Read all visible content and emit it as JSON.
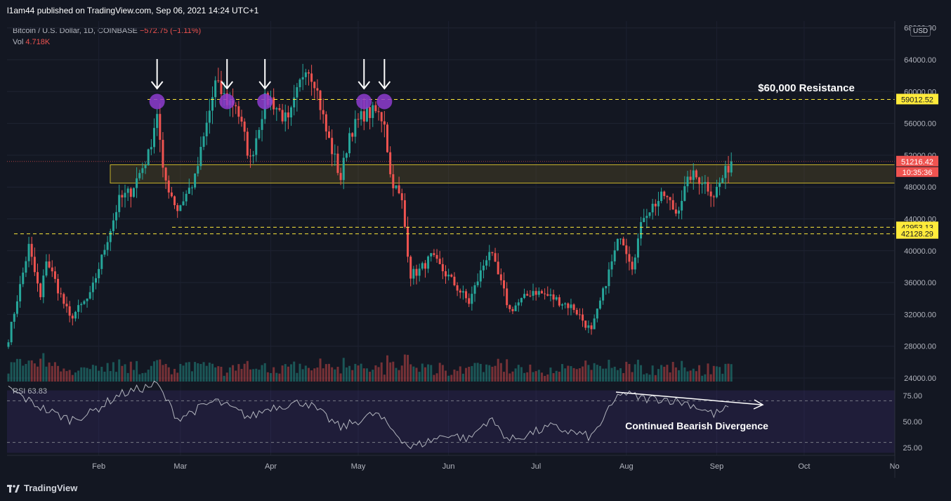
{
  "publisher_line": "l1am44 published on TradingView.com, Sep 06, 2021 14:24 UTC+1",
  "footer_brand": "TradingView",
  "legend": {
    "symbol": "Bitcoin / U.S. Dollar, 1D, COINBASE",
    "change": "−572.75 (−1.11%)",
    "vol_label": "Vol",
    "vol_value": "4.718K"
  },
  "currency_badge": "USD",
  "chart_data": {
    "type": "candlestick",
    "colors": {
      "up": "#26a69a",
      "down": "#ef5350",
      "background": "#131722",
      "level": "#ffeb3b",
      "marker": "#8e3ccf",
      "rsi": "#b2b5be"
    },
    "y_axis": {
      "min": 24000,
      "max": 68000,
      "ticks": [
        24000,
        28000,
        32000,
        36000,
        40000,
        44000,
        48000,
        52000,
        56000,
        60000,
        64000,
        68000
      ]
    },
    "x_axis_labels": [
      "Feb",
      "Mar",
      "Apr",
      "May",
      "Jun",
      "Jul",
      "Aug",
      "Sep",
      "Oct",
      "No"
    ],
    "price_labels": [
      {
        "text": "59012.52",
        "value": 59012.52,
        "style": "yellow"
      },
      {
        "text": "51216.42",
        "value": 51216.42,
        "style": "red"
      },
      {
        "text": "42953.13",
        "value": 42953.13,
        "style": "yellow"
      },
      {
        "text": "42128.29",
        "value": 42128.29,
        "style": "yellow"
      }
    ],
    "countdown": "10:35:36",
    "horizontal_levels": [
      59012.52,
      42953.13,
      42128.29
    ],
    "zone": {
      "low": 48500,
      "high": 50800
    },
    "price_path": [
      {
        "d": "2021-01-01",
        "p": 29000
      },
      {
        "d": "2021-01-08",
        "p": 40500
      },
      {
        "d": "2021-01-12",
        "p": 34000
      },
      {
        "d": "2021-01-14",
        "p": 39000
      },
      {
        "d": "2021-01-22",
        "p": 31500
      },
      {
        "d": "2021-01-29",
        "p": 34300
      },
      {
        "d": "2021-02-08",
        "p": 46300
      },
      {
        "d": "2021-02-12",
        "p": 47500
      },
      {
        "d": "2021-02-18",
        "p": 52000
      },
      {
        "d": "2021-02-21",
        "p": 57500
      },
      {
        "d": "2021-02-23",
        "p": 49700
      },
      {
        "d": "2021-02-28",
        "p": 45200
      },
      {
        "d": "2021-03-06",
        "p": 49000
      },
      {
        "d": "2021-03-13",
        "p": 61000
      },
      {
        "d": "2021-03-17",
        "p": 58800
      },
      {
        "d": "2021-03-20",
        "p": 58500
      },
      {
        "d": "2021-03-25",
        "p": 51300
      },
      {
        "d": "2021-03-30",
        "p": 58800
      },
      {
        "d": "2021-04-01",
        "p": 59000
      },
      {
        "d": "2021-04-07",
        "p": 56000
      },
      {
        "d": "2021-04-13",
        "p": 63500
      },
      {
        "d": "2021-04-16",
        "p": 61500
      },
      {
        "d": "2021-04-20",
        "p": 55000
      },
      {
        "d": "2021-04-25",
        "p": 49100
      },
      {
        "d": "2021-04-28",
        "p": 54800
      },
      {
        "d": "2021-05-03",
        "p": 57200
      },
      {
        "d": "2021-05-07",
        "p": 57400
      },
      {
        "d": "2021-05-10",
        "p": 56400
      },
      {
        "d": "2021-05-12",
        "p": 49500
      },
      {
        "d": "2021-05-16",
        "p": 46000
      },
      {
        "d": "2021-05-19",
        "p": 37000
      },
      {
        "d": "2021-05-22",
        "p": 37500
      },
      {
        "d": "2021-05-26",
        "p": 39200
      },
      {
        "d": "2021-06-01",
        "p": 36700
      },
      {
        "d": "2021-06-08",
        "p": 33500
      },
      {
        "d": "2021-06-15",
        "p": 40100
      },
      {
        "d": "2021-06-22",
        "p": 32500
      },
      {
        "d": "2021-06-30",
        "p": 35000
      },
      {
        "d": "2021-07-06",
        "p": 34200
      },
      {
        "d": "2021-07-14",
        "p": 32800
      },
      {
        "d": "2021-07-20",
        "p": 29800
      },
      {
        "d": "2021-07-26",
        "p": 37300
      },
      {
        "d": "2021-07-30",
        "p": 42200
      },
      {
        "d": "2021-08-03",
        "p": 38200
      },
      {
        "d": "2021-08-07",
        "p": 44600
      },
      {
        "d": "2021-08-14",
        "p": 47000
      },
      {
        "d": "2021-08-18",
        "p": 44800
      },
      {
        "d": "2021-08-23",
        "p": 49500
      },
      {
        "d": "2021-08-27",
        "p": 48900
      },
      {
        "d": "2021-08-31",
        "p": 47100
      },
      {
        "d": "2021-09-06",
        "p": 51216
      }
    ],
    "volume": {
      "max": 5000,
      "current": "4.718K"
    },
    "rsi": {
      "label": "RSI",
      "value_label": "63.83",
      "levels": [
        70,
        30
      ],
      "ticks": [
        "75.00",
        "50.00",
        "25.00"
      ],
      "path": [
        {
          "d": "2021-01-01",
          "v": 82
        },
        {
          "d": "2021-01-08",
          "v": 70
        },
        {
          "d": "2021-01-14",
          "v": 61
        },
        {
          "d": "2021-01-22",
          "v": 52
        },
        {
          "d": "2021-01-29",
          "v": 58
        },
        {
          "d": "2021-02-08",
          "v": 76
        },
        {
          "d": "2021-02-21",
          "v": 86
        },
        {
          "d": "2021-02-28",
          "v": 53
        },
        {
          "d": "2021-03-13",
          "v": 70
        },
        {
          "d": "2021-03-25",
          "v": 54
        },
        {
          "d": "2021-04-01",
          "v": 64
        },
        {
          "d": "2021-04-13",
          "v": 69
        },
        {
          "d": "2021-04-25",
          "v": 44
        },
        {
          "d": "2021-05-07",
          "v": 58
        },
        {
          "d": "2021-05-19",
          "v": 25
        },
        {
          "d": "2021-06-01",
          "v": 38
        },
        {
          "d": "2021-06-08",
          "v": 33
        },
        {
          "d": "2021-06-15",
          "v": 53
        },
        {
          "d": "2021-06-22",
          "v": 32
        },
        {
          "d": "2021-07-06",
          "v": 45
        },
        {
          "d": "2021-07-20",
          "v": 35
        },
        {
          "d": "2021-07-30",
          "v": 78
        },
        {
          "d": "2021-08-07",
          "v": 72
        },
        {
          "d": "2021-08-14",
          "v": 72
        },
        {
          "d": "2021-08-23",
          "v": 67
        },
        {
          "d": "2021-08-31",
          "v": 57
        },
        {
          "d": "2021-09-06",
          "v": 64
        }
      ]
    },
    "annotations": [
      {
        "text": "$60,000 Resistance",
        "kind": "label"
      },
      {
        "text": "Continued Bearish Divergence",
        "kind": "label"
      }
    ],
    "top_markers": [
      "2021-02-21",
      "2021-03-17",
      "2021-03-30",
      "2021-05-03",
      "2021-05-10"
    ]
  }
}
